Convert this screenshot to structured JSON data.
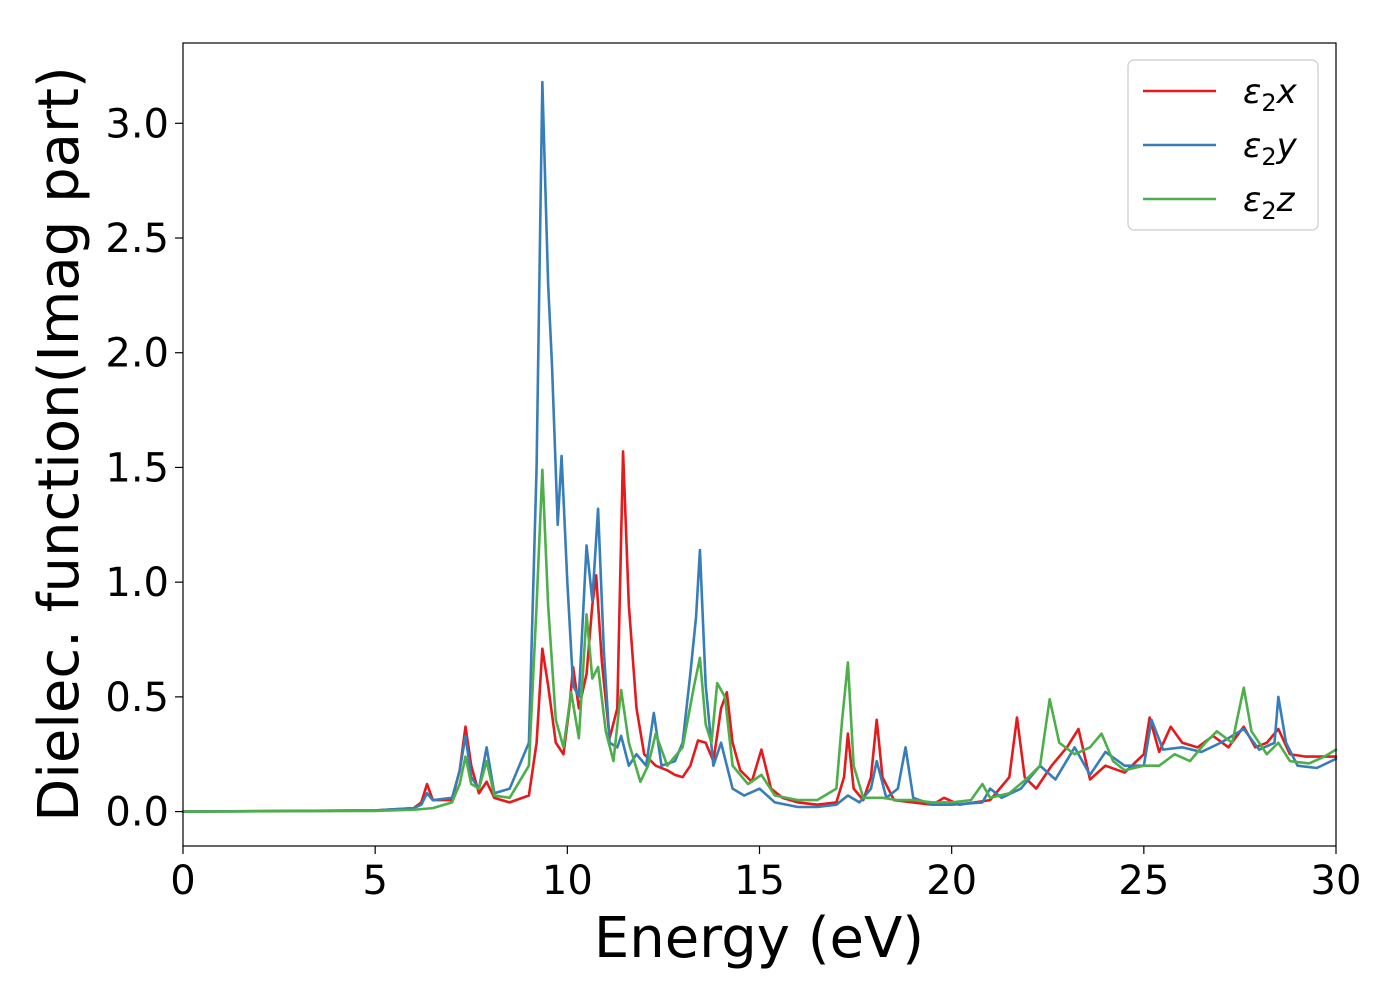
{
  "chart_data": {
    "type": "line",
    "title": "",
    "xlabel": "Energy (eV)",
    "ylabel": "Dielec. function(Imag part)",
    "xlim": [
      0,
      30
    ],
    "ylim": [
      -0.15,
      3.35
    ],
    "xticks": [
      0,
      5,
      10,
      15,
      20,
      25,
      30
    ],
    "xtick_labels": [
      "0",
      "5",
      "10",
      "15",
      "20",
      "25",
      "30"
    ],
    "yticks": [
      0.0,
      0.5,
      1.0,
      1.5,
      2.0,
      2.5,
      3.0
    ],
    "ytick_labels": [
      "0.0",
      "0.5",
      "1.0",
      "1.5",
      "2.0",
      "2.5",
      "3.0"
    ],
    "grid": false,
    "legend_position": "top-right",
    "series": [
      {
        "name": "ε2x",
        "legend_base": "ε",
        "legend_sub": "2",
        "legend_suffix": "x",
        "color": "#e41a1c",
        "points": [
          [
            0,
            0
          ],
          [
            5,
            0.005
          ],
          [
            6,
            0.015
          ],
          [
            6.2,
            0.04
          ],
          [
            6.35,
            0.12
          ],
          [
            6.5,
            0.05
          ],
          [
            7.0,
            0.05
          ],
          [
            7.2,
            0.18
          ],
          [
            7.35,
            0.37
          ],
          [
            7.5,
            0.2
          ],
          [
            7.7,
            0.08
          ],
          [
            7.9,
            0.13
          ],
          [
            8.1,
            0.06
          ],
          [
            8.5,
            0.04
          ],
          [
            9.0,
            0.07
          ],
          [
            9.2,
            0.3
          ],
          [
            9.35,
            0.71
          ],
          [
            9.5,
            0.55
          ],
          [
            9.7,
            0.3
          ],
          [
            9.9,
            0.25
          ],
          [
            10.05,
            0.45
          ],
          [
            10.15,
            0.63
          ],
          [
            10.3,
            0.45
          ],
          [
            10.5,
            0.6
          ],
          [
            10.65,
            0.9
          ],
          [
            10.75,
            1.03
          ],
          [
            10.9,
            0.65
          ],
          [
            11.1,
            0.32
          ],
          [
            11.3,
            0.45
          ],
          [
            11.45,
            1.57
          ],
          [
            11.6,
            0.9
          ],
          [
            11.8,
            0.45
          ],
          [
            12.0,
            0.25
          ],
          [
            12.3,
            0.2
          ],
          [
            12.6,
            0.18
          ],
          [
            12.8,
            0.16
          ],
          [
            13.0,
            0.15
          ],
          [
            13.2,
            0.2
          ],
          [
            13.4,
            0.31
          ],
          [
            13.6,
            0.3
          ],
          [
            13.8,
            0.22
          ],
          [
            14.0,
            0.45
          ],
          [
            14.15,
            0.52
          ],
          [
            14.3,
            0.3
          ],
          [
            14.5,
            0.18
          ],
          [
            14.8,
            0.13
          ],
          [
            15.05,
            0.27
          ],
          [
            15.3,
            0.1
          ],
          [
            15.6,
            0.06
          ],
          [
            16.0,
            0.04
          ],
          [
            16.5,
            0.03
          ],
          [
            17.0,
            0.04
          ],
          [
            17.2,
            0.15
          ],
          [
            17.3,
            0.34
          ],
          [
            17.45,
            0.1
          ],
          [
            17.7,
            0.05
          ],
          [
            17.9,
            0.15
          ],
          [
            18.05,
            0.4
          ],
          [
            18.2,
            0.15
          ],
          [
            18.5,
            0.05
          ],
          [
            19.0,
            0.04
          ],
          [
            19.5,
            0.03
          ],
          [
            19.8,
            0.06
          ],
          [
            20.2,
            0.03
          ],
          [
            21.0,
            0.05
          ],
          [
            21.5,
            0.15
          ],
          [
            21.7,
            0.41
          ],
          [
            21.9,
            0.15
          ],
          [
            22.2,
            0.1
          ],
          [
            22.6,
            0.2
          ],
          [
            23.0,
            0.28
          ],
          [
            23.3,
            0.36
          ],
          [
            23.6,
            0.14
          ],
          [
            24.0,
            0.2
          ],
          [
            24.5,
            0.17
          ],
          [
            25.0,
            0.25
          ],
          [
            25.15,
            0.41
          ],
          [
            25.4,
            0.26
          ],
          [
            25.7,
            0.37
          ],
          [
            26.0,
            0.3
          ],
          [
            26.4,
            0.28
          ],
          [
            26.8,
            0.33
          ],
          [
            27.2,
            0.28
          ],
          [
            27.6,
            0.37
          ],
          [
            27.9,
            0.28
          ],
          [
            28.2,
            0.3
          ],
          [
            28.5,
            0.36
          ],
          [
            28.8,
            0.25
          ],
          [
            29.2,
            0.24
          ],
          [
            29.6,
            0.24
          ],
          [
            30,
            0.24
          ]
        ]
      },
      {
        "name": "ε2y",
        "legend_base": "ε",
        "legend_sub": "2",
        "legend_suffix": "y",
        "color": "#377eb8",
        "points": [
          [
            0,
            0
          ],
          [
            5,
            0.005
          ],
          [
            6,
            0.015
          ],
          [
            6.2,
            0.03
          ],
          [
            6.35,
            0.08
          ],
          [
            6.5,
            0.05
          ],
          [
            7.0,
            0.06
          ],
          [
            7.2,
            0.18
          ],
          [
            7.35,
            0.33
          ],
          [
            7.5,
            0.15
          ],
          [
            7.7,
            0.1
          ],
          [
            7.9,
            0.28
          ],
          [
            8.1,
            0.08
          ],
          [
            8.5,
            0.1
          ],
          [
            9.0,
            0.3
          ],
          [
            9.2,
            1.5
          ],
          [
            9.35,
            3.18
          ],
          [
            9.5,
            2.3
          ],
          [
            9.6,
            1.95
          ],
          [
            9.75,
            1.25
          ],
          [
            9.85,
            1.55
          ],
          [
            10.0,
            1.0
          ],
          [
            10.15,
            0.55
          ],
          [
            10.3,
            0.5
          ],
          [
            10.5,
            1.16
          ],
          [
            10.65,
            0.92
          ],
          [
            10.8,
            1.32
          ],
          [
            10.95,
            0.7
          ],
          [
            11.1,
            0.3
          ],
          [
            11.3,
            0.28
          ],
          [
            11.4,
            0.33
          ],
          [
            11.6,
            0.2
          ],
          [
            11.8,
            0.25
          ],
          [
            12.05,
            0.2
          ],
          [
            12.25,
            0.43
          ],
          [
            12.45,
            0.2
          ],
          [
            12.8,
            0.22
          ],
          [
            13.0,
            0.3
          ],
          [
            13.2,
            0.6
          ],
          [
            13.35,
            0.85
          ],
          [
            13.45,
            1.14
          ],
          [
            13.6,
            0.55
          ],
          [
            13.8,
            0.2
          ],
          [
            14.0,
            0.3
          ],
          [
            14.3,
            0.1
          ],
          [
            14.6,
            0.07
          ],
          [
            15.0,
            0.1
          ],
          [
            15.4,
            0.04
          ],
          [
            16.0,
            0.02
          ],
          [
            16.5,
            0.02
          ],
          [
            17.0,
            0.03
          ],
          [
            17.3,
            0.07
          ],
          [
            17.6,
            0.04
          ],
          [
            17.9,
            0.1
          ],
          [
            18.05,
            0.22
          ],
          [
            18.3,
            0.06
          ],
          [
            18.6,
            0.1
          ],
          [
            18.8,
            0.28
          ],
          [
            19.0,
            0.06
          ],
          [
            19.5,
            0.03
          ],
          [
            20.0,
            0.03
          ],
          [
            20.8,
            0.04
          ],
          [
            21.0,
            0.1
          ],
          [
            21.3,
            0.06
          ],
          [
            21.8,
            0.1
          ],
          [
            22.3,
            0.2
          ],
          [
            22.7,
            0.14
          ],
          [
            23.2,
            0.28
          ],
          [
            23.6,
            0.16
          ],
          [
            24.0,
            0.26
          ],
          [
            24.5,
            0.2
          ],
          [
            25.0,
            0.2
          ],
          [
            25.2,
            0.4
          ],
          [
            25.5,
            0.27
          ],
          [
            26.0,
            0.28
          ],
          [
            26.5,
            0.26
          ],
          [
            27.0,
            0.3
          ],
          [
            27.6,
            0.36
          ],
          [
            28.0,
            0.27
          ],
          [
            28.4,
            0.3
          ],
          [
            28.5,
            0.5
          ],
          [
            28.7,
            0.3
          ],
          [
            29.0,
            0.2
          ],
          [
            29.5,
            0.19
          ],
          [
            30,
            0.23
          ]
        ]
      },
      {
        "name": "ε2z",
        "legend_base": "ε",
        "legend_sub": "2",
        "legend_suffix": "z",
        "color": "#4daf4a",
        "points": [
          [
            0,
            0
          ],
          [
            5,
            0.003
          ],
          [
            6,
            0.008
          ],
          [
            6.5,
            0.015
          ],
          [
            7.0,
            0.04
          ],
          [
            7.2,
            0.12
          ],
          [
            7.35,
            0.24
          ],
          [
            7.5,
            0.12
          ],
          [
            7.7,
            0.1
          ],
          [
            7.9,
            0.22
          ],
          [
            8.1,
            0.07
          ],
          [
            8.5,
            0.06
          ],
          [
            9.0,
            0.2
          ],
          [
            9.2,
            0.9
          ],
          [
            9.35,
            1.49
          ],
          [
            9.5,
            0.9
          ],
          [
            9.7,
            0.4
          ],
          [
            9.9,
            0.28
          ],
          [
            10.1,
            0.52
          ],
          [
            10.3,
            0.32
          ],
          [
            10.5,
            0.86
          ],
          [
            10.65,
            0.58
          ],
          [
            10.8,
            0.63
          ],
          [
            11.0,
            0.35
          ],
          [
            11.2,
            0.22
          ],
          [
            11.4,
            0.53
          ],
          [
            11.6,
            0.3
          ],
          [
            11.9,
            0.13
          ],
          [
            12.1,
            0.2
          ],
          [
            12.3,
            0.34
          ],
          [
            12.6,
            0.2
          ],
          [
            13.0,
            0.28
          ],
          [
            13.3,
            0.55
          ],
          [
            13.45,
            0.67
          ],
          [
            13.6,
            0.38
          ],
          [
            13.75,
            0.3
          ],
          [
            13.9,
            0.56
          ],
          [
            14.1,
            0.5
          ],
          [
            14.3,
            0.2
          ],
          [
            14.7,
            0.12
          ],
          [
            15.05,
            0.16
          ],
          [
            15.4,
            0.07
          ],
          [
            16.0,
            0.05
          ],
          [
            16.5,
            0.05
          ],
          [
            17.0,
            0.1
          ],
          [
            17.15,
            0.4
          ],
          [
            17.3,
            0.65
          ],
          [
            17.45,
            0.2
          ],
          [
            17.7,
            0.06
          ],
          [
            18.2,
            0.06
          ],
          [
            18.6,
            0.05
          ],
          [
            19.0,
            0.05
          ],
          [
            19.5,
            0.04
          ],
          [
            20.0,
            0.04
          ],
          [
            20.5,
            0.05
          ],
          [
            20.8,
            0.12
          ],
          [
            21.0,
            0.06
          ],
          [
            21.5,
            0.08
          ],
          [
            22.0,
            0.15
          ],
          [
            22.3,
            0.2
          ],
          [
            22.55,
            0.49
          ],
          [
            22.8,
            0.3
          ],
          [
            23.2,
            0.25
          ],
          [
            23.6,
            0.28
          ],
          [
            23.9,
            0.34
          ],
          [
            24.2,
            0.22
          ],
          [
            24.5,
            0.18
          ],
          [
            25.0,
            0.2
          ],
          [
            25.4,
            0.2
          ],
          [
            25.8,
            0.25
          ],
          [
            26.2,
            0.22
          ],
          [
            26.6,
            0.3
          ],
          [
            26.9,
            0.35
          ],
          [
            27.3,
            0.3
          ],
          [
            27.6,
            0.54
          ],
          [
            27.8,
            0.35
          ],
          [
            28.2,
            0.25
          ],
          [
            28.5,
            0.3
          ],
          [
            28.8,
            0.22
          ],
          [
            29.3,
            0.21
          ],
          [
            29.7,
            0.24
          ],
          [
            30,
            0.27
          ]
        ]
      }
    ]
  }
}
